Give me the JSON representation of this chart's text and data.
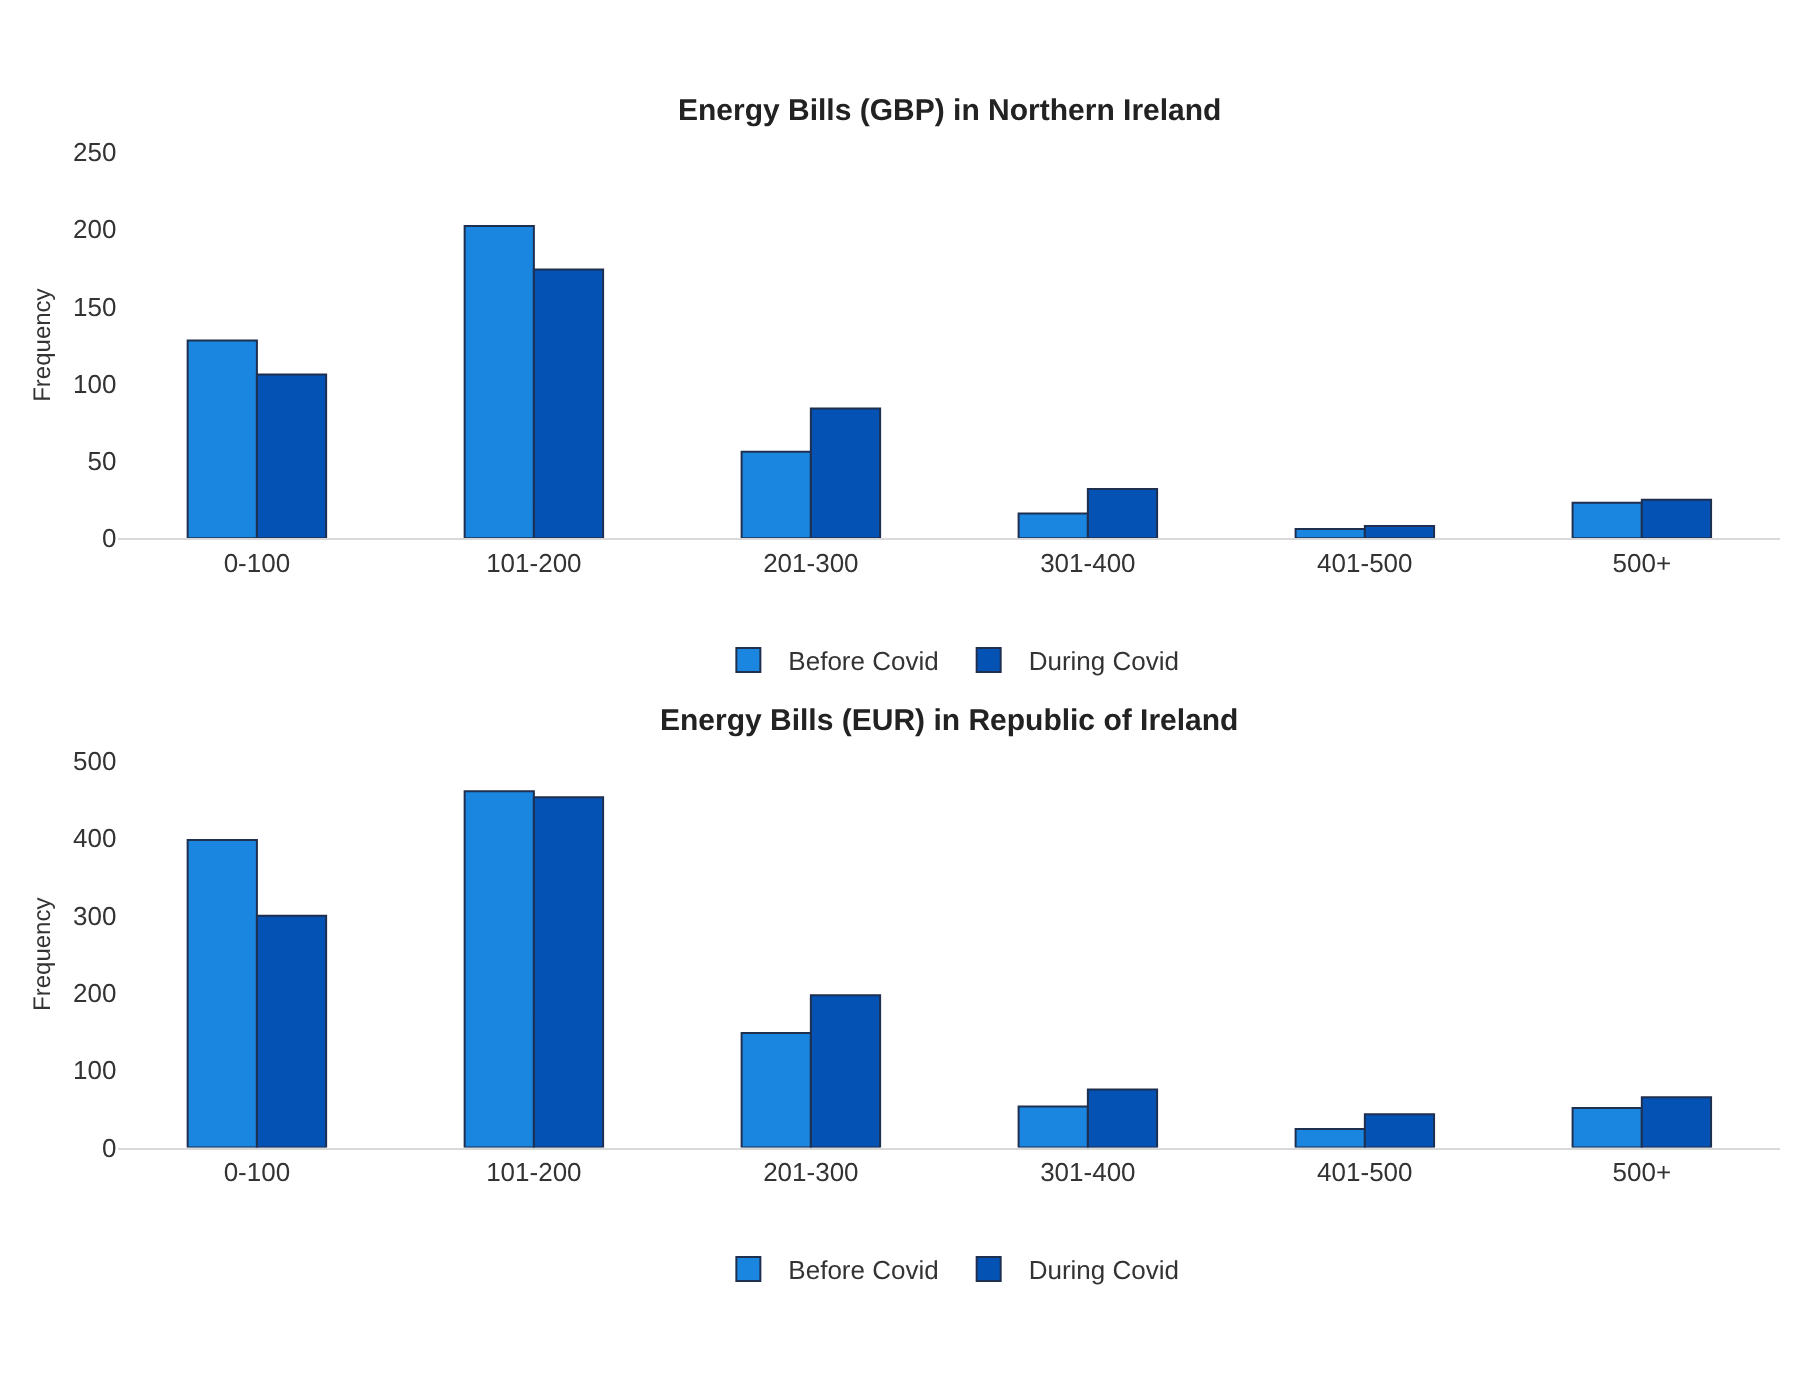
{
  "chart_data": [
    {
      "type": "bar",
      "title": "Energy Bills (GBP) in Northern Ireland",
      "ylabel": "Frequency",
      "categories": [
        "0-100",
        "101-200",
        "201-300",
        "301-400",
        "401-500",
        "500+"
      ],
      "series": [
        {
          "name": "Before Covid",
          "color": "#1a86e0",
          "values": [
            128,
            202,
            56,
            16,
            6,
            23
          ]
        },
        {
          "name": "During Covid",
          "color": "#0552b5",
          "values": [
            106,
            174,
            84,
            32,
            8,
            25
          ]
        }
      ],
      "ylim": [
        0,
        250
      ],
      "yticks": [
        0,
        50,
        100,
        150,
        200,
        250
      ],
      "grid": false,
      "legend": "bottom"
    },
    {
      "type": "bar",
      "title": "Energy Bills (EUR) in Republic of Ireland",
      "ylabel": "Frequency",
      "categories": [
        "0-100",
        "101-200",
        "201-300",
        "301-400",
        "401-500",
        "500+"
      ],
      "series": [
        {
          "name": "Before Covid",
          "color": "#1a86e0",
          "values": [
            398,
            461,
            148,
            53,
            24,
            51
          ]
        },
        {
          "name": "During Covid",
          "color": "#0552b5",
          "values": [
            300,
            453,
            197,
            75,
            43,
            65
          ]
        }
      ],
      "ylim": [
        0,
        500
      ],
      "yticks": [
        0,
        100,
        200,
        300,
        400,
        500
      ],
      "grid": false,
      "legend": "bottom"
    }
  ]
}
